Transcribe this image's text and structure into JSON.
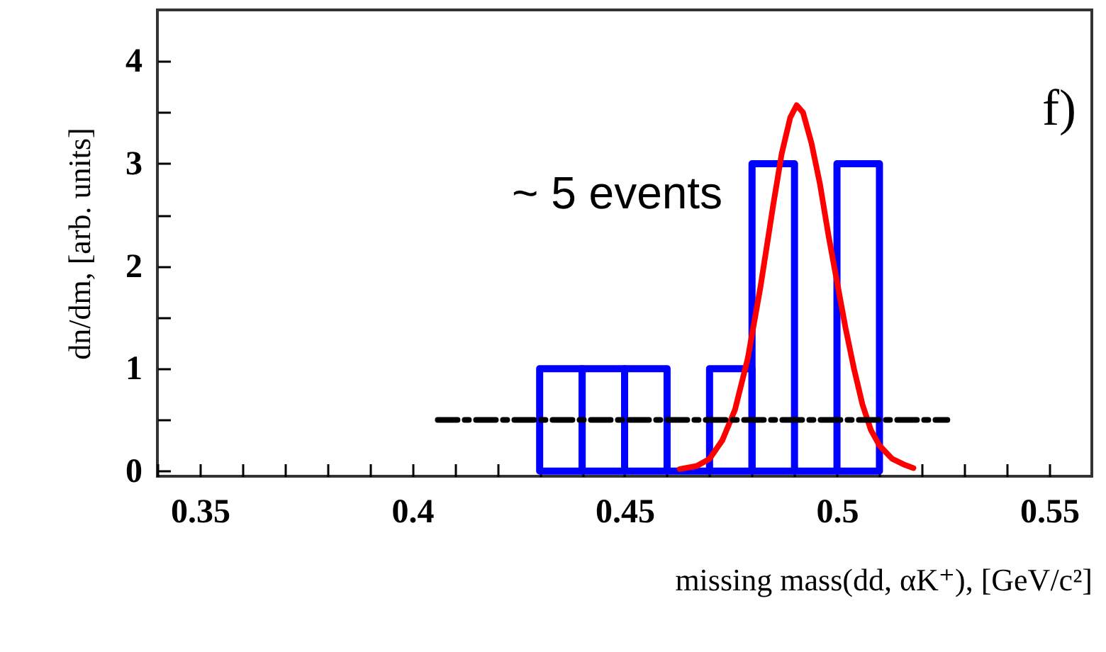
{
  "chart_data": {
    "type": "histogram",
    "xlabel": "missing mass(dd, αK⁺), [GeV/c²]",
    "ylabel": "dn/dm, [arb. units]",
    "annotations": [
      "~ 5 events",
      "f)"
    ],
    "bins": [
      0.43,
      0.44,
      0.45,
      0.46,
      0.47,
      0.48,
      0.49,
      0.5,
      0.51
    ],
    "values": [
      1,
      1,
      1,
      0,
      1,
      3,
      0,
      3
    ],
    "color": "#0000ff",
    "series": [
      {
        "type": "line",
        "color": "#ff0000",
        "x": [
          0.463,
          0.467,
          0.47,
          0.473,
          0.476,
          0.479,
          0.482,
          0.485,
          0.487,
          0.489,
          0.4905,
          0.492,
          0.494,
          0.496,
          0.498,
          0.5,
          0.502,
          0.504,
          0.506,
          0.508,
          0.51,
          0.513,
          0.516,
          0.518
        ],
        "values": [
          0.02,
          0.05,
          0.12,
          0.3,
          0.6,
          1.1,
          1.8,
          2.6,
          3.1,
          3.45,
          3.57,
          3.5,
          3.2,
          2.8,
          2.3,
          1.85,
          1.4,
          1.0,
          0.65,
          0.4,
          0.25,
          0.12,
          0.06,
          0.03
        ]
      },
      {
        "type": "line",
        "color": "#000000",
        "line_style": "dashed",
        "x": [
          0.406,
          0.526
        ],
        "values": [
          0.5,
          0.5
        ]
      }
    ],
    "xlim": [
      0.34,
      0.56
    ],
    "xticks": [
      {
        "value": 0.34,
        "label": null
      },
      0.35,
      {
        "value": 0.36,
        "label": null
      },
      {
        "value": 0.37,
        "label": null
      },
      {
        "value": 0.38,
        "label": null
      },
      {
        "value": 0.39,
        "label": null
      },
      0.4,
      {
        "value": 0.41,
        "label": null
      },
      {
        "value": 0.42,
        "label": null
      },
      {
        "value": 0.43,
        "label": null
      },
      {
        "value": 0.44,
        "label": null
      },
      0.45,
      {
        "value": 0.46,
        "label": null
      },
      {
        "value": 0.47,
        "label": null
      },
      {
        "value": 0.48,
        "label": null
      },
      {
        "value": 0.49,
        "label": null
      },
      0.5,
      {
        "value": 0.51,
        "label": null
      },
      {
        "value": 0.52,
        "label": null
      },
      {
        "value": 0.53,
        "label": null
      },
      {
        "value": 0.54,
        "label": null
      },
      0.55
    ],
    "ylim": [
      -0.05,
      4.5
    ],
    "yticks": [
      0,
      {
        "value": 0.5,
        "label": null
      },
      1,
      {
        "value": 1.5,
        "label": null
      },
      2,
      {
        "value": 2.5,
        "label": null
      },
      3,
      {
        "value": 3.5,
        "label": null
      },
      4
    ],
    "grid": false
  }
}
